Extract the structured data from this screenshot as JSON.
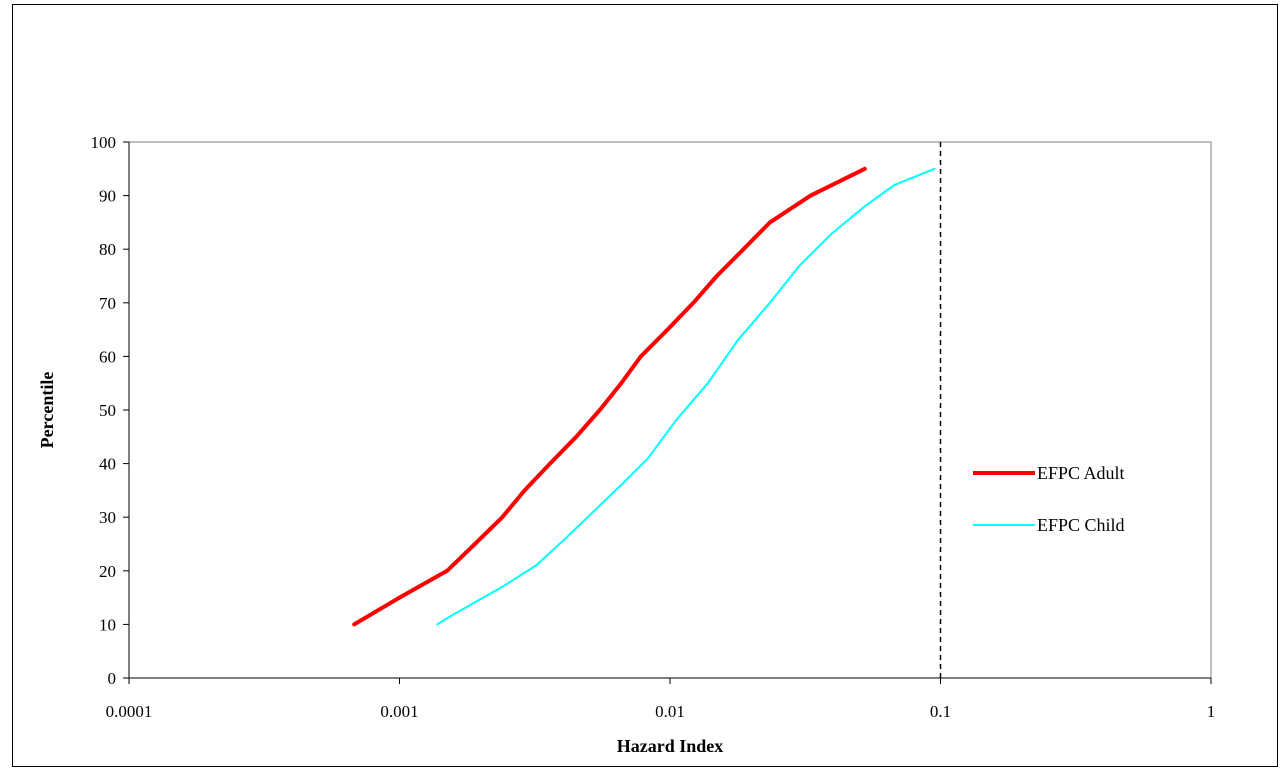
{
  "chart_data": {
    "type": "line",
    "title": "",
    "xlabel": "Hazard Index",
    "ylabel": "Percentile",
    "xscale": "log",
    "xlim": [
      0.0001,
      1
    ],
    "ylim": [
      0,
      100
    ],
    "x_ticks": [
      "0.0001",
      "0.001",
      "0.01",
      "0.1",
      "1"
    ],
    "y_ticks": [
      "0",
      "10",
      "20",
      "30",
      "40",
      "50",
      "60",
      "70",
      "80",
      "90",
      "100"
    ],
    "grid": false,
    "legend_position": "right",
    "reference_line": {
      "x": 0.1,
      "style": "dashed",
      "color": "#000000"
    },
    "series": [
      {
        "name": "EFPC Adult",
        "color": "#ff0000",
        "line_width": "thick",
        "points": [
          [
            0.00068,
            10
          ],
          [
            0.001,
            15
          ],
          [
            0.0015,
            20
          ],
          [
            0.0019,
            25
          ],
          [
            0.0024,
            30
          ],
          [
            0.0029,
            35
          ],
          [
            0.0036,
            40
          ],
          [
            0.0045,
            45
          ],
          [
            0.0055,
            50
          ],
          [
            0.0066,
            55
          ],
          [
            0.0078,
            60
          ],
          [
            0.0098,
            65
          ],
          [
            0.0122,
            70
          ],
          [
            0.0149,
            75
          ],
          [
            0.0187,
            80
          ],
          [
            0.0234,
            85
          ],
          [
            0.0331,
            90
          ],
          [
            0.0525,
            95
          ]
        ]
      },
      {
        "name": "EFPC Child",
        "color": "#00ffff",
        "line_width": "thin",
        "points": [
          [
            0.00138,
            10
          ],
          [
            0.0016,
            12
          ],
          [
            0.0024,
            17
          ],
          [
            0.0032,
            21
          ],
          [
            0.0041,
            26
          ],
          [
            0.0052,
            31
          ],
          [
            0.0066,
            36
          ],
          [
            0.0083,
            41
          ],
          [
            0.0105,
            48
          ],
          [
            0.0138,
            55
          ],
          [
            0.0178,
            63
          ],
          [
            0.0234,
            70
          ],
          [
            0.0302,
            77
          ],
          [
            0.0398,
            83
          ],
          [
            0.0525,
            88
          ],
          [
            0.0676,
            92
          ],
          [
            0.095,
            95
          ]
        ]
      }
    ]
  }
}
